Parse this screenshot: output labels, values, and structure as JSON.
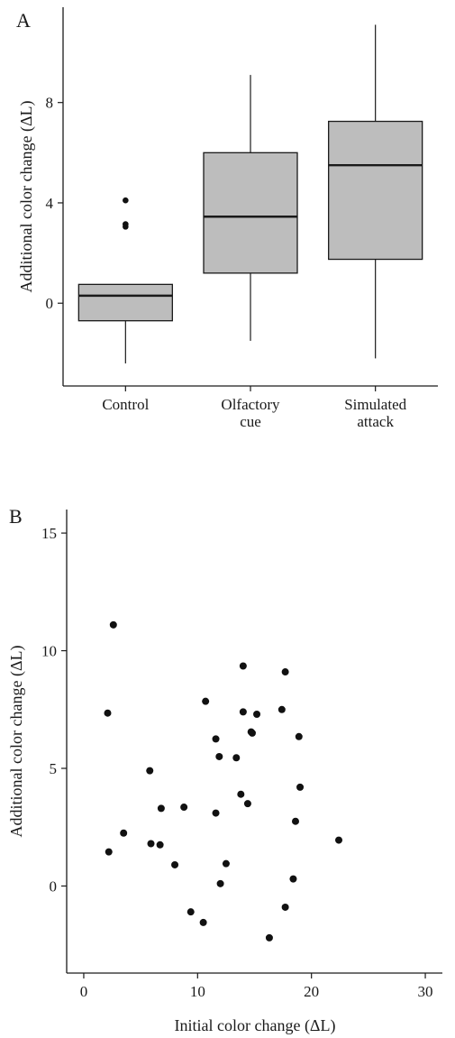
{
  "chart_data": [
    {
      "panel": "A",
      "type": "box",
      "ylabel": "Additional color change (ΔL)",
      "yticks": [
        "0",
        "4",
        "8"
      ],
      "ytick_values": [
        0,
        4,
        8
      ],
      "ylim": [
        -3.3,
        11.8
      ],
      "categories": [
        "Control",
        "Olfactory\ncue",
        "Simulated\nattack"
      ],
      "boxes": [
        {
          "label": "Control",
          "whisker_low": -2.4,
          "q1": -0.7,
          "median": 0.3,
          "q3": 0.75,
          "whisker_high": 0.75,
          "outliers": [
            4.1,
            3.15,
            3.05
          ]
        },
        {
          "label": "Olfactory cue",
          "whisker_low": -1.5,
          "q1": 1.2,
          "median": 3.45,
          "q3": 6.0,
          "whisker_high": 9.1,
          "outliers": []
        },
        {
          "label": "Simulated attack",
          "whisker_low": -2.2,
          "q1": 1.75,
          "median": 5.5,
          "q3": 7.25,
          "whisker_high": 11.1,
          "outliers": []
        }
      ]
    },
    {
      "panel": "B",
      "type": "scatter",
      "xlabel": "Initial color change (ΔL)",
      "ylabel": "Additional color change (ΔL)",
      "xticks": [
        "0",
        "10",
        "20",
        "30"
      ],
      "xtick_values": [
        0,
        10,
        20,
        30
      ],
      "yticks": [
        "0",
        "5",
        "10",
        "15"
      ],
      "ytick_values": [
        0,
        5,
        10,
        15
      ],
      "xlim": [
        -1.5,
        31.5
      ],
      "ylim": [
        -3.7,
        16.0
      ],
      "points": [
        [
          2.6,
          11.1
        ],
        [
          2.1,
          7.35
        ],
        [
          2.2,
          1.45
        ],
        [
          3.5,
          2.25
        ],
        [
          5.8,
          4.9
        ],
        [
          5.9,
          1.8
        ],
        [
          6.7,
          1.75
        ],
        [
          6.8,
          3.3
        ],
        [
          8.0,
          0.9
        ],
        [
          8.8,
          3.35
        ],
        [
          9.4,
          -1.1
        ],
        [
          10.5,
          -1.55
        ],
        [
          10.7,
          7.85
        ],
        [
          11.6,
          6.25
        ],
        [
          11.6,
          3.1
        ],
        [
          11.9,
          5.5
        ],
        [
          12.0,
          0.1
        ],
        [
          12.5,
          0.95
        ],
        [
          13.4,
          5.45
        ],
        [
          13.8,
          3.9
        ],
        [
          14.0,
          9.35
        ],
        [
          14.0,
          7.4
        ],
        [
          14.4,
          3.5
        ],
        [
          14.7,
          6.55
        ],
        [
          14.8,
          6.5
        ],
        [
          15.2,
          7.3
        ],
        [
          16.3,
          -2.2
        ],
        [
          17.4,
          7.5
        ],
        [
          17.7,
          9.1
        ],
        [
          17.7,
          -0.9
        ],
        [
          18.4,
          0.3
        ],
        [
          18.6,
          2.75
        ],
        [
          18.9,
          6.35
        ],
        [
          19.0,
          4.2
        ],
        [
          22.4,
          1.95
        ]
      ]
    }
  ]
}
